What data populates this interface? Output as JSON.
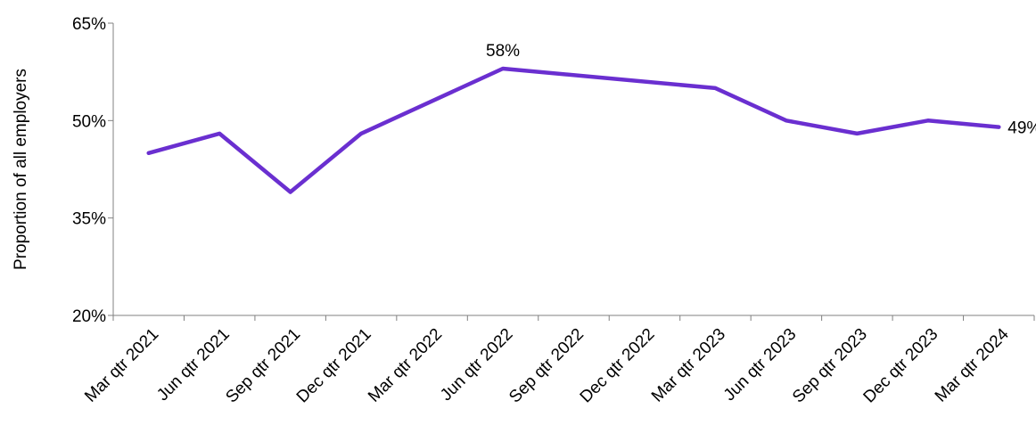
{
  "chart_data": {
    "type": "line",
    "categories": [
      "Mar qtr 2021",
      "Jun qtr 2021",
      "Sep qtr 2021",
      "Dec qtr 2021",
      "Mar qtr 2022",
      "Jun qtr 2022",
      "Sep qtr 2022",
      "Dec qtr 2022",
      "Mar qtr 2023",
      "Jun qtr 2023",
      "Sep qtr 2023",
      "Dec qtr 2023",
      "Mar qtr 2024"
    ],
    "series": [
      {
        "values": [
          45,
          48,
          39,
          48,
          null,
          58,
          null,
          null,
          55,
          50,
          48,
          50,
          49
        ]
      }
    ],
    "ylabel": "Proportion of all employers",
    "ylim": [
      20,
      65
    ],
    "yticks": [
      20,
      35,
      50,
      65
    ],
    "ytick_labels": [
      "20%",
      "35%",
      "50%",
      "65%"
    ],
    "data_labels": [
      {
        "category": "Jun qtr 2022",
        "text": "58%"
      },
      {
        "category": "Mar qtr 2024",
        "text": "49%"
      }
    ],
    "line_color": "#6a2fd0",
    "grid": false,
    "legend": "none"
  }
}
